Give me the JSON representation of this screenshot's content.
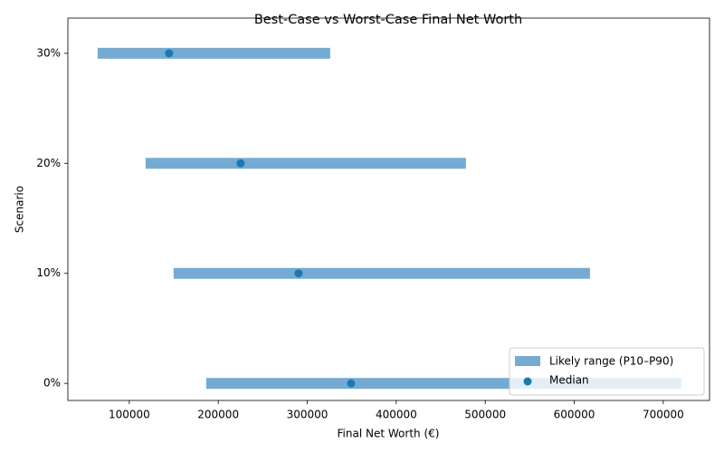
{
  "chart_data": {
    "type": "range",
    "title": "Best-Case vs Worst-Case Final Net Worth",
    "xlabel": "Final Net Worth (€)",
    "ylabel": "Scenario",
    "categories": [
      "0%",
      "10%",
      "20%",
      "30%"
    ],
    "series": [
      {
        "name": "Likely range (P10–P90)",
        "color": "#75abd2",
        "low": [
          186400,
          149800,
          118300,
          64400
        ],
        "high": [
          720300,
          617700,
          478300,
          325800
        ]
      },
      {
        "name": "Median",
        "color": "#1f77b4",
        "values": [
          349200,
          290200,
          225100,
          144700
        ]
      }
    ],
    "xlim": [
      31000,
      752000
    ],
    "xticks": [
      100000,
      200000,
      300000,
      400000,
      500000,
      600000,
      700000
    ],
    "legend": "lower right"
  }
}
